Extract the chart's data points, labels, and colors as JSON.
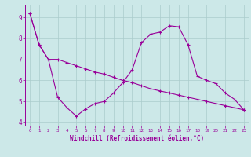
{
  "line1_x": [
    0,
    1,
    2,
    3,
    4,
    5,
    6,
    7,
    8,
    9,
    10,
    11,
    12,
    13,
    14,
    15,
    16,
    17,
    18,
    19,
    20,
    21,
    22,
    23
  ],
  "line1_y": [
    9.2,
    7.7,
    7.0,
    5.2,
    4.7,
    4.3,
    4.65,
    4.9,
    5.0,
    5.4,
    5.9,
    6.5,
    7.8,
    8.2,
    8.3,
    8.6,
    8.55,
    7.7,
    6.2,
    6.0,
    5.85,
    5.4,
    5.1,
    4.6
  ],
  "line2_x": [
    0,
    1,
    2,
    3,
    4,
    5,
    6,
    7,
    8,
    9,
    10,
    11,
    12,
    13,
    14,
    15,
    16,
    17,
    18,
    19,
    20,
    21,
    22,
    23
  ],
  "line2_y": [
    9.2,
    7.7,
    7.0,
    7.0,
    6.85,
    6.7,
    6.55,
    6.4,
    6.3,
    6.15,
    6.0,
    5.9,
    5.75,
    5.6,
    5.5,
    5.4,
    5.3,
    5.2,
    5.1,
    5.0,
    4.9,
    4.8,
    4.7,
    4.6
  ],
  "line_color": "#990099",
  "bg_color": "#cce8e8",
  "grid_color": "#aacccc",
  "xlim": [
    -0.5,
    23.5
  ],
  "ylim": [
    3.85,
    9.6
  ],
  "yticks": [
    4,
    5,
    6,
    7,
    8,
    9
  ],
  "xticks": [
    0,
    1,
    2,
    3,
    4,
    5,
    6,
    7,
    8,
    9,
    10,
    11,
    12,
    13,
    14,
    15,
    16,
    17,
    18,
    19,
    20,
    21,
    22,
    23
  ],
  "xlabel": "Windchill (Refroidissement éolien,°C)",
  "tick_fontsize": 4.2,
  "ytick_fontsize": 5.5,
  "xlabel_fontsize": 5.5
}
